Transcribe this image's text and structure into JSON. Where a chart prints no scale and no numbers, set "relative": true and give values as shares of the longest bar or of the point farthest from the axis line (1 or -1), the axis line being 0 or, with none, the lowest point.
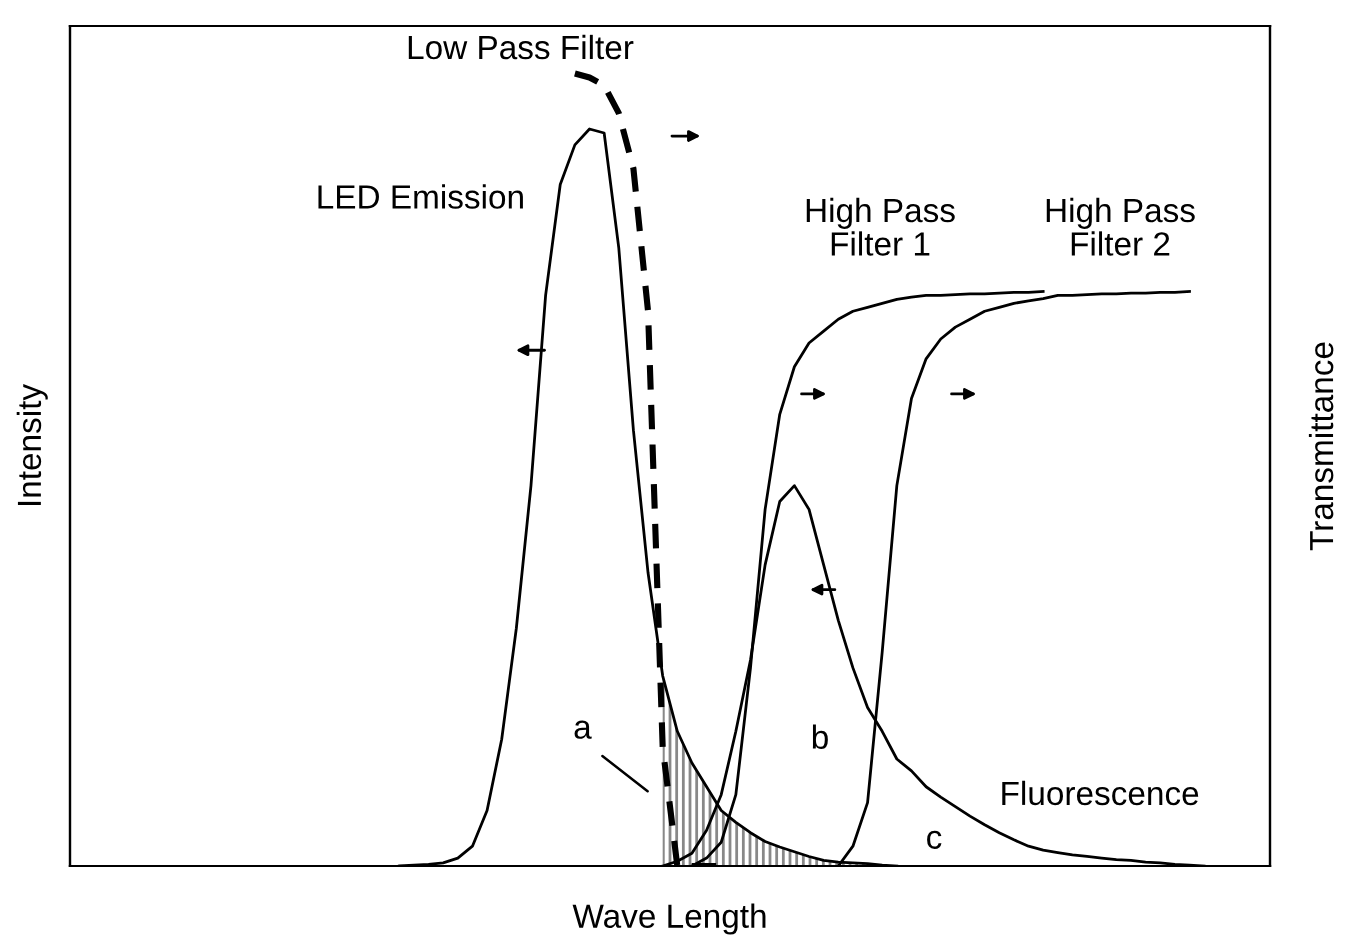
{
  "chart_data": {
    "type": "line",
    "relative": true,
    "xlabel": "Wave Length",
    "ylabel": "Intensity",
    "y2label": "Transmittance",
    "categories": [
      null,
      null,
      null,
      null,
      null,
      null,
      null,
      null,
      null,
      null,
      null,
      null,
      null,
      null,
      null,
      null,
      null,
      null,
      null,
      null,
      null,
      null,
      null,
      null,
      null,
      null,
      null,
      null,
      null,
      null,
      null,
      null,
      null,
      null,
      null,
      null,
      null,
      null,
      null,
      null,
      null,
      null,
      null,
      null,
      null,
      null,
      null,
      null,
      null,
      null,
      null,
      null,
      null,
      null,
      null,
      null,
      null,
      null,
      null,
      null,
      null,
      null,
      null,
      null,
      null,
      null,
      null,
      null,
      null,
      null,
      null,
      null,
      null,
      null,
      null,
      null,
      null,
      null,
      null,
      null,
      null,
      null
    ],
    "grid": false,
    "legend": false,
    "series": [
      {
        "color": "#000000",
        "line_style": "solid",
        "values": [
          null,
          null,
          null,
          null,
          null,
          null,
          null,
          null,
          null,
          null,
          null,
          null,
          null,
          null,
          null,
          null,
          null,
          null,
          null,
          null,
          null,
          null,
          0,
          0.001,
          0.002,
          0.004,
          0.01,
          0.025,
          0.07,
          0.16,
          0.3,
          0.48,
          0.72,
          0.86,
          0.91,
          0.93,
          0.925,
          0.78,
          0.55,
          0.37,
          0.24,
          0.17,
          0.13,
          0.1,
          0.07,
          0.055,
          0.042,
          0.031,
          0.024,
          0.018,
          0.012,
          0.007,
          0.005,
          0.004,
          0.003,
          0.001,
          0,
          null,
          null,
          null,
          null,
          null,
          null,
          null,
          null,
          null,
          null,
          null,
          null,
          null,
          null,
          null,
          null,
          null,
          null,
          null,
          null,
          null,
          null,
          null,
          null,
          null
        ]
      },
      {
        "color": "#000000",
        "line_style": "dashed",
        "values": [
          null,
          null,
          null,
          null,
          null,
          null,
          null,
          null,
          null,
          null,
          null,
          null,
          null,
          null,
          null,
          null,
          null,
          null,
          null,
          null,
          null,
          null,
          null,
          null,
          null,
          null,
          null,
          null,
          null,
          null,
          null,
          null,
          null,
          null,
          1.0,
          0.995,
          0.985,
          0.95,
          0.88,
          0.7,
          0.15,
          0,
          0,
          0,
          0,
          null,
          null,
          null,
          null,
          null,
          null,
          null,
          null,
          null,
          null,
          null,
          null,
          null,
          null,
          null,
          null,
          null,
          null,
          null,
          null,
          null,
          null,
          null,
          null,
          null,
          null,
          null,
          null,
          null,
          null,
          null,
          null,
          null,
          null,
          null,
          null,
          null
        ]
      },
      {
        "color": "#000000",
        "line_style": "solid",
        "values": [
          null,
          null,
          null,
          null,
          null,
          null,
          null,
          null,
          null,
          null,
          null,
          null,
          null,
          null,
          null,
          null,
          null,
          null,
          null,
          null,
          null,
          null,
          null,
          null,
          null,
          null,
          null,
          null,
          null,
          null,
          null,
          null,
          null,
          null,
          null,
          null,
          null,
          null,
          null,
          null,
          null,
          null,
          0,
          0.01,
          0.03,
          0.09,
          0.25,
          0.45,
          0.57,
          0.63,
          0.66,
          0.675,
          0.69,
          0.7,
          0.705,
          0.71,
          0.715,
          0.718,
          0.72,
          0.72,
          0.721,
          0.722,
          0.722,
          0.723,
          0.724,
          0.724,
          0.725,
          null,
          null,
          null,
          null,
          null,
          null,
          null,
          null,
          null,
          null,
          null,
          null,
          null,
          null,
          null
        ]
      },
      {
        "color": "#000000",
        "line_style": "solid",
        "values": [
          null,
          null,
          null,
          null,
          null,
          null,
          null,
          null,
          null,
          null,
          null,
          null,
          null,
          null,
          null,
          null,
          null,
          null,
          null,
          null,
          null,
          null,
          null,
          null,
          null,
          null,
          null,
          null,
          null,
          null,
          null,
          null,
          null,
          null,
          null,
          null,
          null,
          null,
          null,
          null,
          null,
          null,
          null,
          null,
          null,
          null,
          null,
          null,
          null,
          null,
          null,
          null,
          0,
          0.025,
          0.08,
          0.27,
          0.48,
          0.59,
          0.64,
          0.665,
          0.68,
          0.69,
          0.7,
          0.705,
          0.71,
          0.713,
          0.716,
          0.72,
          0.72,
          0.721,
          0.722,
          0.722,
          0.723,
          0.723,
          0.724,
          0.724,
          0.725,
          null,
          null,
          null,
          null,
          null
        ]
      },
      {
        "color": "#000000",
        "line_style": "solid",
        "values": [
          null,
          null,
          null,
          null,
          null,
          null,
          null,
          null,
          null,
          null,
          null,
          null,
          null,
          null,
          null,
          null,
          null,
          null,
          null,
          null,
          null,
          null,
          null,
          null,
          null,
          null,
          null,
          null,
          null,
          null,
          null,
          null,
          null,
          null,
          null,
          null,
          null,
          null,
          null,
          null,
          0,
          0.006,
          0.016,
          0.045,
          0.09,
          0.17,
          0.26,
          0.38,
          0.46,
          0.48,
          0.45,
          0.38,
          0.31,
          0.25,
          0.2,
          0.17,
          0.135,
          0.12,
          0.1,
          0.087,
          0.075,
          0.063,
          0.052,
          0.042,
          0.033,
          0.025,
          0.02,
          0.017,
          0.014,
          0.012,
          0.01,
          0.008,
          0.007,
          0.005,
          0.004,
          0.002,
          0.001,
          0,
          null,
          null,
          null,
          null
        ]
      }
    ],
    "annotations": [
      "Low Pass Filter",
      "LED Emission",
      "High Pass\nFilter 1",
      "High Pass\nFilter 2",
      "Fluorescence",
      "a",
      "b",
      "c"
    ]
  }
}
